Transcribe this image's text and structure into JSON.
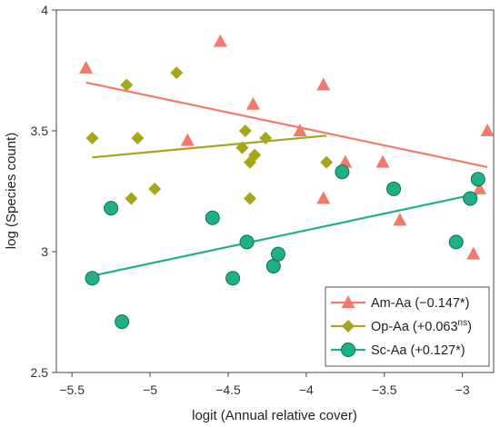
{
  "chart_data": {
    "type": "scatter",
    "xlabel": "logit (Annual relative cover)",
    "ylabel": "log (Species count)",
    "xlim": [
      -5.6,
      -2.8
    ],
    "ylim": [
      2.5,
      4
    ],
    "xticks": [
      -5.5,
      -5,
      -4.5,
      -4,
      -3.5,
      -3
    ],
    "xtick_labels": [
      "−5.5",
      "−5",
      "−4.5",
      "−4",
      "−3.5",
      "−3"
    ],
    "yticks": [
      2.5,
      3,
      3.5,
      4
    ],
    "ytick_labels": [
      "2.5",
      "3",
      "3.5",
      "4"
    ],
    "grid": false,
    "legend_position": "bottom-right",
    "series": [
      {
        "name": "Am-Aa",
        "legend_text": "Am-Aa (−0.147*)",
        "marker": "triangle",
        "color": "#f07a6c",
        "points": [
          [
            -5.41,
            3.76
          ],
          [
            -4.76,
            3.46
          ],
          [
            -4.55,
            3.87
          ],
          [
            -4.34,
            3.61
          ],
          [
            -4.04,
            3.5
          ],
          [
            -3.89,
            3.69
          ],
          [
            -3.89,
            3.22
          ],
          [
            -3.75,
            3.37
          ],
          [
            -3.51,
            3.37
          ],
          [
            -3.4,
            3.13
          ],
          [
            -2.93,
            2.99
          ],
          [
            -2.89,
            3.26
          ],
          [
            -2.84,
            3.5
          ]
        ],
        "fit": [
          [
            -5.41,
            3.7
          ],
          [
            -2.84,
            3.35
          ]
        ]
      },
      {
        "name": "Op-Aa",
        "legend_text": "Op-Aa (+0.063",
        "legend_sup": "ns",
        "legend_close": ")",
        "marker": "diamond",
        "color": "#a6a51c",
        "points": [
          [
            -5.37,
            3.47
          ],
          [
            -5.15,
            3.69
          ],
          [
            -5.12,
            3.22
          ],
          [
            -5.08,
            3.47
          ],
          [
            -4.97,
            3.26
          ],
          [
            -4.83,
            3.74
          ],
          [
            -4.41,
            3.43
          ],
          [
            -4.39,
            3.5
          ],
          [
            -4.36,
            3.37
          ],
          [
            -4.36,
            3.22
          ],
          [
            -4.33,
            3.4
          ],
          [
            -4.26,
            3.47
          ],
          [
            -3.87,
            3.37
          ]
        ],
        "fit": [
          [
            -5.37,
            3.39
          ],
          [
            -3.87,
            3.48
          ]
        ]
      },
      {
        "name": "Sc-Aa",
        "legend_text": "Sc-Aa (+0.127*)",
        "marker": "circle",
        "color": "#20b088",
        "points": [
          [
            -5.37,
            2.89
          ],
          [
            -5.25,
            3.18
          ],
          [
            -5.18,
            2.71
          ],
          [
            -4.6,
            3.14
          ],
          [
            -4.47,
            2.89
          ],
          [
            -4.38,
            3.04
          ],
          [
            -4.21,
            2.94
          ],
          [
            -4.18,
            2.99
          ],
          [
            -3.77,
            3.33
          ],
          [
            -3.44,
            3.26
          ],
          [
            -3.04,
            3.04
          ],
          [
            -2.95,
            3.22
          ],
          [
            -2.9,
            3.3
          ]
        ],
        "fit": [
          [
            -5.37,
            2.9
          ],
          [
            -2.9,
            3.24
          ]
        ]
      }
    ]
  }
}
